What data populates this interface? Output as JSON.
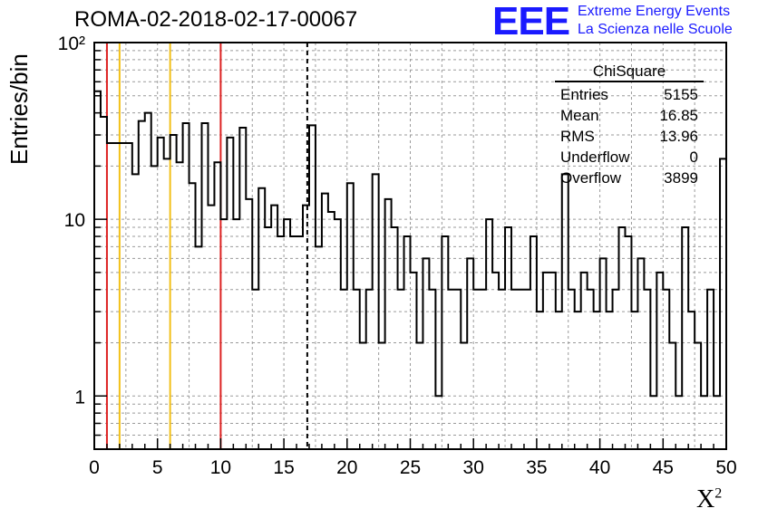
{
  "title": "ROMA-02-2018-02-17-00067",
  "logo": {
    "mark": "EEE",
    "line1": "Extreme Energy Events",
    "line2": "La Scienza nelle Scuole",
    "color": "#1a1aff"
  },
  "stats": {
    "name": "ChiSquare",
    "rows": [
      {
        "label": "Entries",
        "value": "5155"
      },
      {
        "label": "Mean",
        "value": "16.85"
      },
      {
        "label": "RMS",
        "value": "13.96"
      },
      {
        "label": "Underflow",
        "value": "0"
      },
      {
        "label": "Overflow",
        "value": "3899"
      }
    ]
  },
  "chart_data": {
    "type": "histogram",
    "xlabel": "X",
    "xlabel_sup": "2",
    "ylabel": "Entries/bin",
    "xlim": [
      0,
      50
    ],
    "ylim": [
      0.5,
      100
    ],
    "yscale": "log",
    "grid": true,
    "bin_width": 0.5,
    "x_ticks": [
      0,
      5,
      10,
      15,
      20,
      25,
      30,
      35,
      40,
      45,
      50
    ],
    "y_tick_labels": [
      "1",
      "10",
      "10²"
    ],
    "y_tick_values": [
      1,
      10,
      100
    ],
    "values": [
      53,
      38,
      27,
      27,
      27,
      27,
      18,
      36,
      40,
      20,
      29,
      22,
      30,
      21,
      35,
      16,
      7,
      35,
      12,
      21,
      10,
      29,
      10,
      33,
      13,
      4,
      15,
      9,
      12,
      8,
      10,
      8,
      8,
      12,
      34,
      7,
      14,
      11,
      10,
      4,
      16,
      4,
      2,
      4,
      18,
      2,
      13,
      9,
      4,
      8,
      5,
      2,
      6,
      4,
      1,
      8,
      4,
      4,
      2,
      6,
      4,
      4,
      10,
      5,
      4,
      9,
      4,
      4,
      4,
      8,
      3,
      5,
      5,
      3,
      18,
      4,
      3,
      5,
      4,
      3,
      6,
      3,
      4,
      9,
      8,
      3,
      6,
      4,
      1,
      5,
      4,
      2,
      1,
      9,
      3,
      2,
      1,
      4,
      1,
      22
    ],
    "vlines": [
      {
        "x": 1,
        "color": "#dd2222",
        "style": "solid"
      },
      {
        "x": 2,
        "color": "#f2c018",
        "style": "solid"
      },
      {
        "x": 6,
        "color": "#f2c018",
        "style": "solid"
      },
      {
        "x": 10,
        "color": "#dd2222",
        "style": "solid"
      },
      {
        "x": 16.85,
        "color": "#000000",
        "style": "dashed"
      }
    ]
  }
}
